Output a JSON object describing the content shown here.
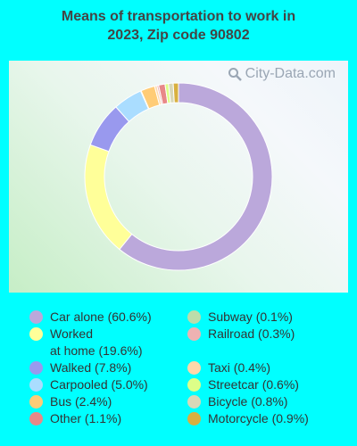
{
  "title_lines": [
    "Means of transportation to work in",
    "2023, Zip code 90802"
  ],
  "watermark": "City-Data.com",
  "chart_data": {
    "type": "pie",
    "style": "donut",
    "title": "Means of transportation to work in 2023, Zip code 90802",
    "unit": "%",
    "categories": [
      "Car alone",
      "Worked at home",
      "Walked",
      "Carpooled",
      "Bus",
      "Other",
      "Subway",
      "Railroad",
      "Taxi",
      "Streetcar",
      "Bicycle",
      "Motorcycle"
    ],
    "values": [
      60.6,
      19.6,
      7.8,
      5.0,
      2.4,
      1.1,
      0.1,
      0.3,
      0.4,
      0.6,
      0.8,
      0.9
    ],
    "colors": [
      "#bba8db",
      "#ffff99",
      "#9999ee",
      "#aaddff",
      "#ffcc77",
      "#e88888",
      "#bbddaa",
      "#eeb2b2",
      "#ffd8aa",
      "#ddff88",
      "#d8d8b8",
      "#d8b040"
    ],
    "slice_order": [
      0,
      1,
      2,
      3,
      6,
      4,
      8,
      7,
      5,
      9,
      10,
      11
    ],
    "legend": {
      "columns": [
        [
          "Car alone (60.6%)",
          "Worked\nat home (19.6%)",
          "Walked (7.8%)",
          "Carpooled (5.0%)",
          "Bus (2.4%)",
          "Other (1.1%)"
        ],
        [
          "Subway (0.1%)",
          "Railroad (0.3%)",
          "Taxi (0.4%)",
          "Streetcar (0.6%)",
          "Bicycle (0.8%)",
          "Motorcycle (0.9%)"
        ]
      ],
      "column_series_index": [
        [
          0,
          1,
          2,
          3,
          4,
          5
        ],
        [
          6,
          7,
          8,
          9,
          10,
          11
        ]
      ]
    }
  }
}
